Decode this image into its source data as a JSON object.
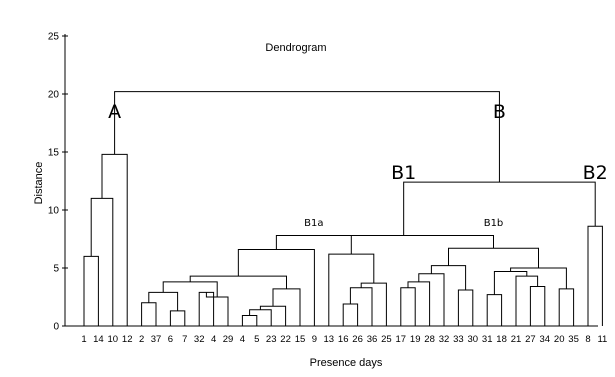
{
  "chart_data": {
    "type": "dendrogram",
    "title": "Dendrogram",
    "xlabel": "Presence days",
    "ylabel": "Distance",
    "ylim": [
      0,
      25
    ],
    "yticks": [
      0,
      5,
      10,
      15,
      20,
      25
    ],
    "leaves": [
      "1",
      "14",
      "10",
      "12",
      "2",
      "37",
      "6",
      "7",
      "32",
      "4",
      "29",
      "4",
      "5",
      "23",
      "22",
      "15",
      "9",
      "13",
      "16",
      "26",
      "36",
      "25",
      "17",
      "19",
      "28",
      "32",
      "33",
      "30",
      "31",
      "18",
      "21",
      "27",
      "34",
      "20",
      "35",
      "8",
      "11"
    ],
    "clusters": [
      {
        "name": "A",
        "height": 20.2
      },
      {
        "name": "B",
        "height": 20.2
      },
      {
        "name": "B1",
        "height": 12.4
      },
      {
        "name": "B2",
        "height": 12.4
      },
      {
        "name": "B1a",
        "height": 7.8
      },
      {
        "name": "B1b",
        "height": 7.8
      }
    ],
    "merges": [
      {
        "left": 0,
        "right": 1,
        "height": 6.0
      },
      {
        "left": 37,
        "right": 2,
        "height": 11.0
      },
      {
        "left": 38,
        "right": 3,
        "height": 14.8
      },
      {
        "left": 4,
        "right": 5,
        "height": 2.0
      },
      {
        "left": 6,
        "right": 7,
        "height": 1.3
      },
      {
        "left": 40,
        "right": 41,
        "height": 2.9
      },
      {
        "left": 8,
        "right": 9,
        "height": 2.9
      },
      {
        "left": 43,
        "right": 10,
        "height": 2.5
      },
      {
        "left": 42,
        "right": 44,
        "height": 3.8
      },
      {
        "left": 11,
        "right": 12,
        "height": 0.9
      },
      {
        "left": 46,
        "right": 13,
        "height": 1.4
      },
      {
        "left": 47,
        "right": 14,
        "height": 1.7
      },
      {
        "left": 48,
        "right": 15,
        "height": 3.2
      },
      {
        "left": 45,
        "right": 49,
        "height": 4.3
      },
      {
        "left": 50,
        "right": 16,
        "height": 6.6
      },
      {
        "left": 18,
        "right": 19,
        "height": 1.9
      },
      {
        "left": 52,
        "right": 20,
        "height": 3.3
      },
      {
        "left": 53,
        "right": 21,
        "height": 3.7
      },
      {
        "left": 17,
        "right": 54,
        "height": 6.2
      },
      {
        "left": 51,
        "right": 55,
        "height": 7.8
      },
      {
        "left": 22,
        "right": 23,
        "height": 3.3
      },
      {
        "left": 57,
        "right": 24,
        "height": 3.8
      },
      {
        "left": 58,
        "right": 25,
        "height": 4.5
      },
      {
        "left": 26,
        "right": 27,
        "height": 3.1
      },
      {
        "left": 59,
        "right": 60,
        "height": 5.2
      },
      {
        "left": 28,
        "right": 29,
        "height": 2.7
      },
      {
        "left": 31,
        "right": 32,
        "height": 3.4
      },
      {
        "left": 30,
        "right": 63,
        "height": 4.3
      },
      {
        "left": 62,
        "right": 64,
        "height": 4.7
      },
      {
        "left": 33,
        "right": 34,
        "height": 3.2
      },
      {
        "left": 65,
        "right": 66,
        "height": 5.0
      },
      {
        "left": 61,
        "right": 67,
        "height": 6.7
      },
      {
        "left": 56,
        "right": 68,
        "height": 7.8
      },
      {
        "left": 35,
        "right": 36,
        "height": 8.6
      },
      {
        "left": 69,
        "right": 70,
        "height": 12.4
      },
      {
        "left": 39,
        "right": 71,
        "height": 20.2
      }
    ]
  }
}
